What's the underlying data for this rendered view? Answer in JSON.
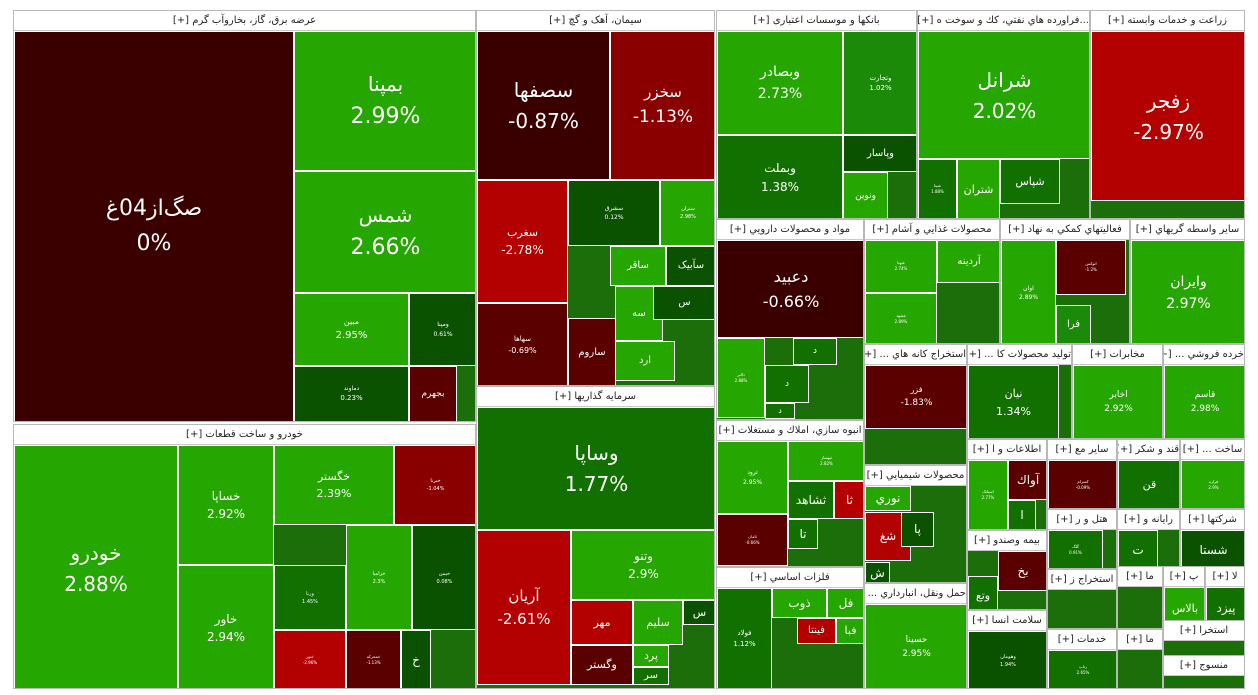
{
  "colors": {
    "bright_green": "#26a600",
    "mid_green": "#1a8a08",
    "green": "#117000",
    "dark_green": "#0b5200",
    "bright_red": "#b30000",
    "red": "#8a0000",
    "dark_red": "#5a0000",
    "darkest_red": "#3a0000"
  },
  "sectors": [
    {
      "title": "عرضه برق، گاز، بخاروآب گرم [+]",
      "tiles": [
        {
          "symbol": "صگ‌از04غ",
          "percent": "0%"
        },
        {
          "symbol": "بمپنا",
          "percent": "2.99%"
        },
        {
          "symbol": "شمس",
          "percent": "2.66%"
        },
        {
          "symbol": "مبین",
          "percent": "2.95%"
        },
        {
          "symbol": "ومپنا",
          "percent": "0.61%"
        },
        {
          "symbol": "دماوند",
          "percent": "0.23%"
        },
        {
          "symbol": "بجهرم",
          "percent": ""
        }
      ]
    },
    {
      "title": "سیمان، آهک و گچ [+]",
      "tiles": [
        {
          "symbol": "سصفها",
          "percent": "-0.87%"
        },
        {
          "symbol": "سخزر",
          "percent": "-1.13%"
        },
        {
          "symbol": "سغرب",
          "percent": "-2.78%"
        },
        {
          "symbol": "سشرق",
          "percent": "0.12%"
        },
        {
          "symbol": "ستران",
          "percent": "2.98%"
        },
        {
          "symbol": "سهاها",
          "percent": "-0.69%"
        },
        {
          "symbol": "ساقر",
          "percent": ""
        },
        {
          "symbol": "سآبیک",
          "percent": ""
        },
        {
          "symbol": "ساروم",
          "percent": ""
        },
        {
          "symbol": "سه",
          "percent": ""
        },
        {
          "symbol": "س",
          "percent": ""
        },
        {
          "symbol": "ارد",
          "percent": ""
        }
      ]
    },
    {
      "title": "بانکها و موسسات اعتباری [+]",
      "tiles": [
        {
          "symbol": "وبصادر",
          "percent": "2.73%"
        },
        {
          "symbol": "وتجارت",
          "percent": "1.02%"
        },
        {
          "symbol": "وپاسار",
          "percent": ""
        },
        {
          "symbol": "وبملت",
          "percent": "1.38%"
        },
        {
          "symbol": "ونوین",
          "percent": ""
        }
      ]
    },
    {
      "title": "...فراورده هاي نفتي، كك و سوخت ه [+]",
      "tiles": [
        {
          "symbol": "شرانل",
          "percent": "2.02%"
        },
        {
          "symbol": "شپنا",
          "percent": "1.88%"
        },
        {
          "symbol": "شتران",
          "percent": ""
        },
        {
          "symbol": "شپاس",
          "percent": ""
        }
      ]
    },
    {
      "title": "زراعت و خدمات وابسته [+]",
      "tiles": [
        {
          "symbol": "زفجر",
          "percent": "-2.97%"
        }
      ]
    },
    {
      "title": "مواد و محصولات دارويي [+]",
      "tiles": [
        {
          "symbol": "دعبيد",
          "percent": "-0.66%"
        },
        {
          "symbol": "دالبر",
          "percent": "2.88%"
        },
        {
          "symbol": "د",
          "percent": ""
        },
        {
          "symbol": "د",
          "percent": ""
        },
        {
          "symbol": "د",
          "percent": ""
        }
      ]
    },
    {
      "title": "محصولات غذايي و آشام [+]",
      "tiles": [
        {
          "symbol": "غبهنا",
          "percent": "2.74%"
        },
        {
          "symbol": "آردينه",
          "percent": ""
        },
        {
          "symbol": "غشهد",
          "percent": "2.89%"
        }
      ]
    },
    {
      "title": "فعاليتهاي كمكي به نهاد [+]",
      "tiles": [
        {
          "symbol": "اوان",
          "percent": "2.89%"
        },
        {
          "symbol": "اتوکس",
          "percent": "-1.2%"
        },
        {
          "symbol": "فرا",
          "percent": ""
        }
      ]
    },
    {
      "title": "ساير واسطه گريهاي [+]",
      "tiles": [
        {
          "symbol": "وايران",
          "percent": "2.97%"
        }
      ]
    },
    {
      "title": "خودرو و ساخت قطعات [+]",
      "tiles": [
        {
          "symbol": "خودرو",
          "percent": "2.88%"
        },
        {
          "symbol": "خساپا",
          "percent": "2.92%"
        },
        {
          "symbol": "خگستر",
          "percent": "2.39%"
        },
        {
          "symbol": "خبرنا",
          "percent": "-1.04%"
        },
        {
          "symbol": "خاور",
          "percent": "2.94%"
        },
        {
          "symbol": "ورنا",
          "percent": "1.45%"
        },
        {
          "symbol": "خزامیا",
          "percent": "2.3%"
        },
        {
          "symbol": "خیمن",
          "percent": "0.08%"
        },
        {
          "symbol": "ختور",
          "percent": "-2.96%"
        },
        {
          "symbol": "خمحرکه",
          "percent": "-1.13%"
        },
        {
          "symbol": "خ",
          "percent": ""
        }
      ]
    },
    {
      "title": "سرمايه گذاريها [+]",
      "tiles": [
        {
          "symbol": "وساپا",
          "percent": "1.77%"
        },
        {
          "symbol": "آريان",
          "percent": "-2.61%"
        },
        {
          "symbol": "وتنو",
          "percent": "2.9%"
        },
        {
          "symbol": "مهر",
          "percent": ""
        },
        {
          "symbol": "سليم",
          "percent": ""
        },
        {
          "symbol": "س",
          "percent": ""
        },
        {
          "symbol": "وگستر",
          "percent": ""
        },
        {
          "symbol": "پرد",
          "percent": ""
        },
        {
          "symbol": "سر",
          "percent": ""
        }
      ]
    },
    {
      "title": "انبوه سازي، املاك و مستغلات [+]",
      "tiles": [
        {
          "symbol": "ثرود",
          "percent": "2.95%"
        },
        {
          "symbol": "ثبهساز",
          "percent": "2.82%"
        },
        {
          "symbol": "ثشاهد",
          "percent": ""
        },
        {
          "symbol": "ثا",
          "percent": ""
        },
        {
          "symbol": "ثامان",
          "percent": "-0.66%"
        },
        {
          "symbol": "تا",
          "percent": ""
        }
      ]
    },
    {
      "title": "فلزات اساسي [+]",
      "tiles": [
        {
          "symbol": "فولاد",
          "percent": "1.12%"
        },
        {
          "symbol": "ذوب",
          "percent": ""
        },
        {
          "symbol": "فل",
          "percent": ""
        },
        {
          "symbol": "فينتا",
          "percent": ""
        },
        {
          "symbol": "فبا",
          "percent": ""
        }
      ]
    },
    {
      "title": "استخراج كانه هاي ... [+]",
      "tiles": [
        {
          "symbol": "فزر",
          "percent": "-1.83%"
        }
      ]
    },
    {
      "title": "محصولات شيميايي [+]",
      "tiles": [
        {
          "symbol": "نوري",
          "percent": ""
        },
        {
          "symbol": "شغ",
          "percent": ""
        },
        {
          "symbol": "پا",
          "percent": ""
        },
        {
          "symbol": "ش",
          "percent": ""
        }
      ]
    },
    {
      "title": "حمل ونقل، انبارداري ... [+]",
      "tiles": [
        {
          "symbol": "حسينا",
          "percent": "2.95%"
        }
      ]
    },
    {
      "title": "توليد محصولات كا ... [+]",
      "tiles": [
        {
          "symbol": "نيان",
          "percent": "1.34%"
        }
      ]
    },
    {
      "title": "مخابرات [+]",
      "tiles": [
        {
          "symbol": "اخابر",
          "percent": "2.92%"
        }
      ]
    },
    {
      "title": "خرده فروشي ... [+]",
      "tiles": [
        {
          "symbol": "قاسم",
          "percent": "2.98%"
        }
      ]
    },
    {
      "title": "اطلاعات و ا [+]",
      "tiles": [
        {
          "symbol": "اسیاتک",
          "percent": "2.77%"
        },
        {
          "symbol": "آواك",
          "percent": ""
        },
        {
          "symbol": "ا",
          "percent": ""
        }
      ]
    },
    {
      "title": "ساير مع [+]",
      "tiles": [
        {
          "symbol": "کسرام",
          "percent": "-0.09%"
        }
      ]
    },
    {
      "title": "قند و شكر [+]",
      "tiles": [
        {
          "symbol": "قن",
          "percent": ""
        }
      ]
    },
    {
      "title": "ساخت ... [+]",
      "tiles": [
        {
          "symbol": "فرازه",
          "percent": "2.9%"
        }
      ]
    },
    {
      "title": "هتل و ر [+]",
      "tiles": [
        {
          "symbol": "گلگ",
          "percent": "0.91%"
        }
      ]
    },
    {
      "title": "رايانه و [+]",
      "tiles": [
        {
          "symbol": "ت",
          "percent": ""
        }
      ]
    },
    {
      "title": "شركتها [+]",
      "tiles": [
        {
          "symbol": "شستا",
          "percent": ""
        }
      ]
    },
    {
      "title": "بيمه وصندو [+]",
      "tiles": [
        {
          "symbol": "بخ",
          "percent": ""
        },
        {
          "symbol": "وتع",
          "percent": ""
        }
      ]
    },
    {
      "title": "استخراج ز [+]",
      "tiles": []
    },
    {
      "title": "ما [+]",
      "tiles": []
    },
    {
      "title": "پ [+]",
      "tiles": [
        {
          "symbol": "بالاس",
          "percent": ""
        }
      ]
    },
    {
      "title": "لا [+]",
      "tiles": [
        {
          "symbol": "پيزد",
          "percent": ""
        }
      ]
    },
    {
      "title": "سلامت انسا [+]",
      "tiles": [
        {
          "symbol": "وهومان",
          "percent": "1.94%"
        }
      ]
    },
    {
      "title": "خدمات [+]",
      "tiles": [
        {
          "symbol": "رتاپ",
          "percent": "2.65%"
        }
      ]
    },
    {
      "title": "ما [+]",
      "tiles": []
    },
    {
      "title": "استخرا [+]",
      "tiles": []
    },
    {
      "title": "منسوج [+]",
      "tiles": []
    }
  ]
}
